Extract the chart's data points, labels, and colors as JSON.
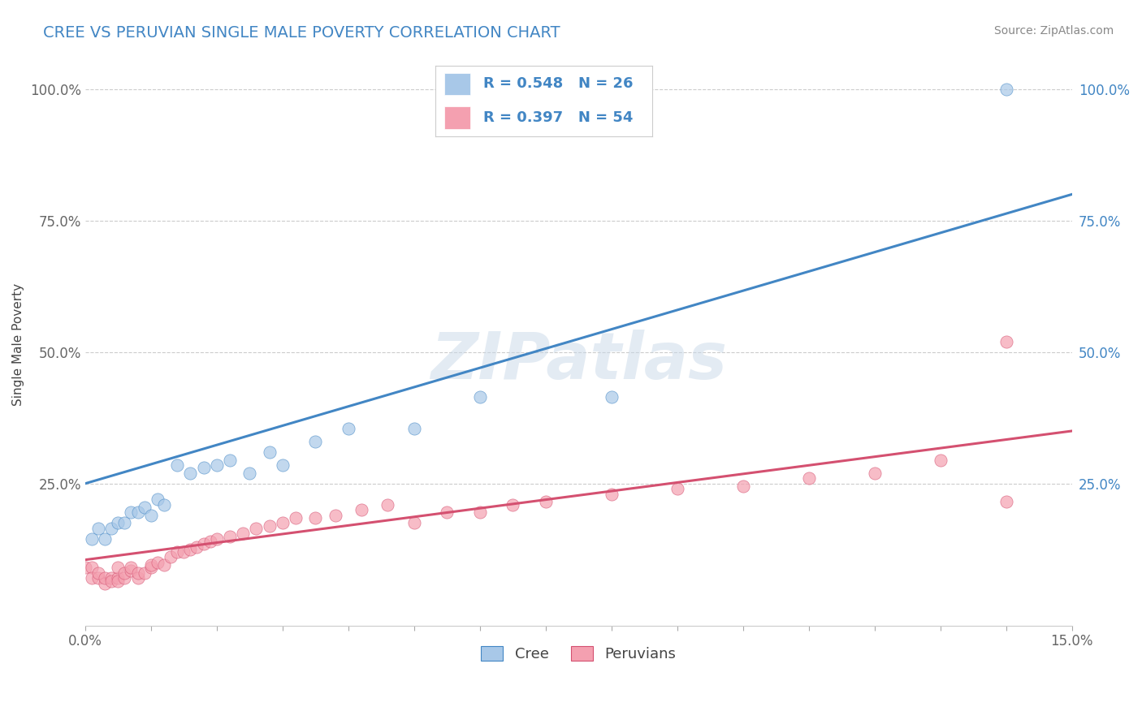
{
  "title": "CREE VS PERUVIAN SINGLE MALE POVERTY CORRELATION CHART",
  "source": "Source: ZipAtlas.com",
  "ylabel": "Single Male Poverty",
  "xlim": [
    0.0,
    0.15
  ],
  "ylim": [
    -0.02,
    1.05
  ],
  "cree_color": "#a8c8e8",
  "cree_line_color": "#4286c4",
  "peruvian_color": "#f4a0b0",
  "peruvian_line_color": "#d45070",
  "cree_R": 0.548,
  "cree_N": 26,
  "peruvian_R": 0.397,
  "peruvian_N": 54,
  "watermark": "ZIPatlas",
  "background_color": "#ffffff",
  "cree_line_x0": 0.0,
  "cree_line_y0": 0.25,
  "cree_line_x1": 0.15,
  "cree_line_y1": 0.8,
  "peru_line_x0": 0.0,
  "peru_line_y0": 0.105,
  "peru_line_x1": 0.15,
  "peru_line_y1": 0.35,
  "cree_x": [
    0.001,
    0.002,
    0.003,
    0.004,
    0.005,
    0.006,
    0.007,
    0.008,
    0.009,
    0.01,
    0.011,
    0.012,
    0.014,
    0.016,
    0.018,
    0.02,
    0.022,
    0.025,
    0.028,
    0.03,
    0.035,
    0.04,
    0.05,
    0.06,
    0.08,
    0.14
  ],
  "cree_y": [
    0.145,
    0.165,
    0.145,
    0.165,
    0.175,
    0.175,
    0.195,
    0.195,
    0.205,
    0.19,
    0.22,
    0.21,
    0.285,
    0.27,
    0.28,
    0.285,
    0.295,
    0.27,
    0.31,
    0.285,
    0.33,
    0.355,
    0.355,
    0.415,
    0.415,
    1.0
  ],
  "peru_x": [
    0.0,
    0.001,
    0.001,
    0.002,
    0.002,
    0.003,
    0.003,
    0.004,
    0.004,
    0.005,
    0.005,
    0.005,
    0.006,
    0.006,
    0.007,
    0.007,
    0.008,
    0.008,
    0.009,
    0.01,
    0.01,
    0.011,
    0.012,
    0.013,
    0.014,
    0.015,
    0.016,
    0.017,
    0.018,
    0.019,
    0.02,
    0.022,
    0.024,
    0.026,
    0.028,
    0.03,
    0.032,
    0.035,
    0.038,
    0.042,
    0.046,
    0.05,
    0.055,
    0.06,
    0.065,
    0.07,
    0.08,
    0.09,
    0.1,
    0.11,
    0.12,
    0.13,
    0.14,
    0.14
  ],
  "peru_y": [
    0.09,
    0.09,
    0.07,
    0.07,
    0.08,
    0.06,
    0.07,
    0.07,
    0.065,
    0.07,
    0.065,
    0.09,
    0.07,
    0.08,
    0.085,
    0.09,
    0.07,
    0.08,
    0.08,
    0.09,
    0.095,
    0.1,
    0.095,
    0.11,
    0.12,
    0.12,
    0.125,
    0.13,
    0.135,
    0.14,
    0.145,
    0.15,
    0.155,
    0.165,
    0.17,
    0.175,
    0.185,
    0.185,
    0.19,
    0.2,
    0.21,
    0.175,
    0.195,
    0.195,
    0.21,
    0.215,
    0.23,
    0.24,
    0.245,
    0.26,
    0.27,
    0.295,
    0.215,
    0.52
  ]
}
